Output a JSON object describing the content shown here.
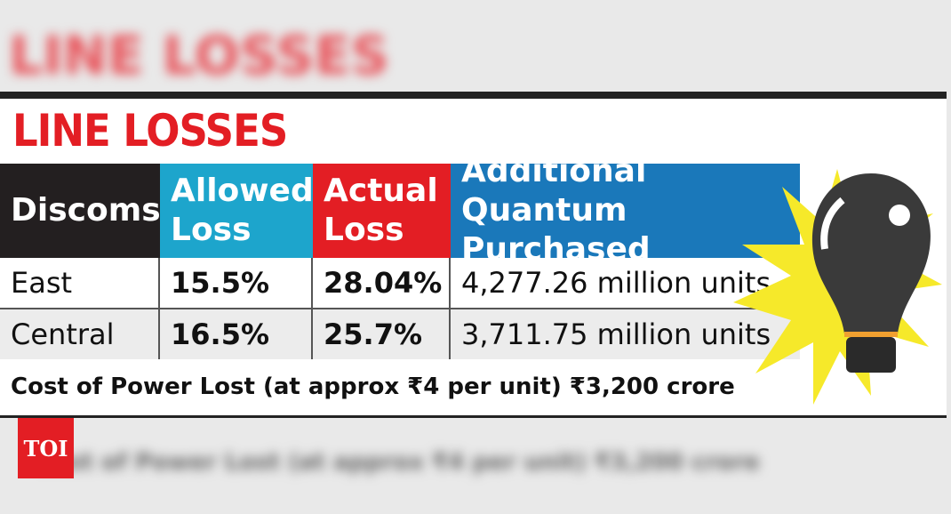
{
  "header": {
    "title": "LINE LOSSES"
  },
  "table": {
    "columns": [
      "Discoms",
      "Allowed Loss",
      "Actual Loss",
      "Additional Quantum Purchased"
    ],
    "rows": [
      [
        "East",
        "15.5%",
        "28.04%",
        "4,277.26 million units"
      ],
      [
        "Central",
        "16.5%",
        "25.7%",
        "3,711.75 million units"
      ]
    ]
  },
  "footer": "Cost of Power Lost (at approx ₹4 per unit) ₹3,200 crore",
  "logo": "TOI"
}
